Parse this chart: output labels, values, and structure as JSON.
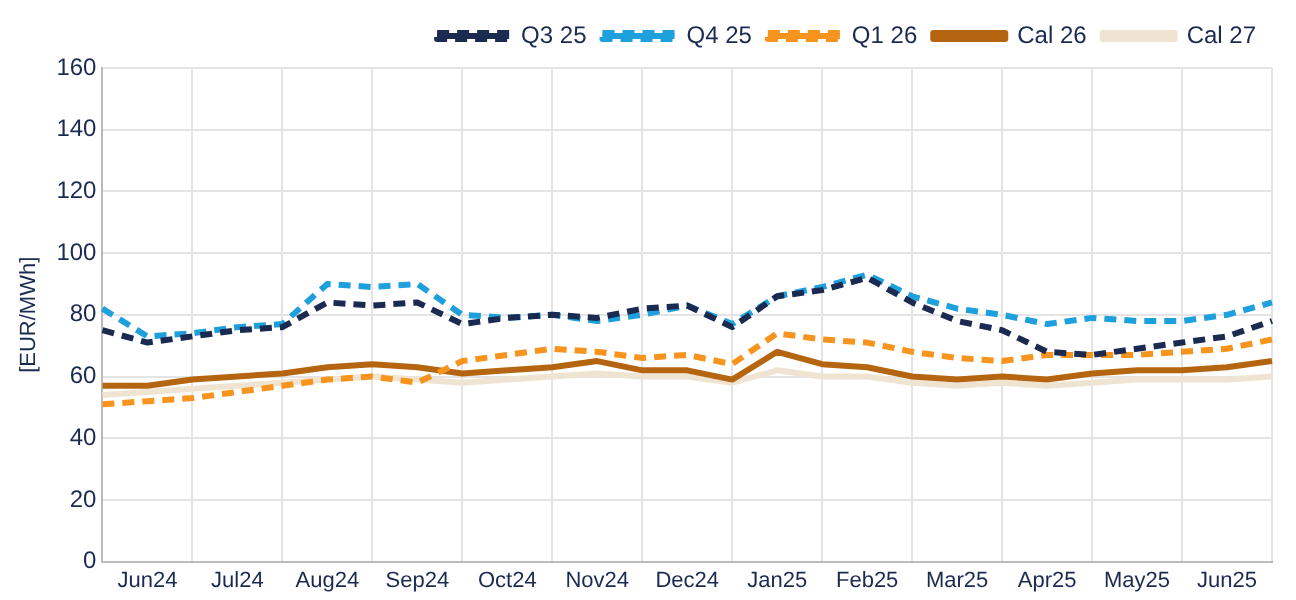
{
  "chart_data": {
    "type": "line",
    "ylabel": "[EUR/MWh]",
    "categories": [
      null,
      "Jun24",
      null,
      "Jul24",
      null,
      "Aug24",
      null,
      "Sep24",
      null,
      "Oct24",
      null,
      "Nov24",
      null,
      "Dec24",
      null,
      "Jan25",
      null,
      "Feb25",
      null,
      "Mar25",
      null,
      "Apr25",
      null,
      "May25",
      null,
      "Jun25",
      null
    ],
    "ylim": [
      0,
      160
    ],
    "yticks": [
      0,
      20,
      40,
      60,
      80,
      100,
      120,
      140,
      160
    ],
    "grid": true,
    "legend": "top right",
    "marker": "none",
    "series": [
      {
        "name": "Q3 25",
        "color": "#1a2a50",
        "line_style": "dashed",
        "values": [
          75,
          71,
          73,
          75,
          76,
          84,
          83,
          84,
          77,
          79,
          80,
          79,
          82,
          83,
          76,
          86,
          88,
          92,
          84,
          78,
          75,
          68,
          67,
          69,
          71,
          73,
          78
        ]
      },
      {
        "name": "Q4 25",
        "color": "#1ea0dc",
        "line_style": "dashed",
        "values": [
          82,
          73,
          74,
          76,
          77,
          90,
          89,
          90,
          80,
          79,
          80,
          78,
          80,
          83,
          77,
          86,
          89,
          93,
          86,
          82,
          80,
          77,
          79,
          78,
          78,
          80,
          84
        ]
      },
      {
        "name": "Q1 26",
        "color": "#f7941d",
        "line_style": "dashed",
        "values": [
          51,
          52,
          53,
          55,
          57,
          59,
          60,
          58,
          65,
          67,
          69,
          68,
          66,
          67,
          64,
          74,
          72,
          71,
          68,
          66,
          65,
          67,
          67,
          67,
          68,
          69,
          72
        ]
      },
      {
        "name": "Cal 26",
        "color": "#b5650f",
        "line_style": "solid",
        "values": [
          57,
          57,
          59,
          60,
          61,
          63,
          64,
          63,
          61,
          62,
          63,
          65,
          62,
          62,
          59,
          68,
          64,
          63,
          60,
          59,
          60,
          59,
          61,
          62,
          62,
          63,
          65
        ]
      },
      {
        "name": "Cal 27",
        "color": "#efe4d2",
        "line_style": "solid",
        "values": [
          54,
          55,
          56,
          57,
          58,
          59,
          60,
          59,
          58,
          59,
          60,
          61,
          60,
          60,
          58,
          62,
          60,
          60,
          58,
          57,
          58,
          57,
          58,
          59,
          59,
          59,
          60
        ]
      }
    ]
  }
}
